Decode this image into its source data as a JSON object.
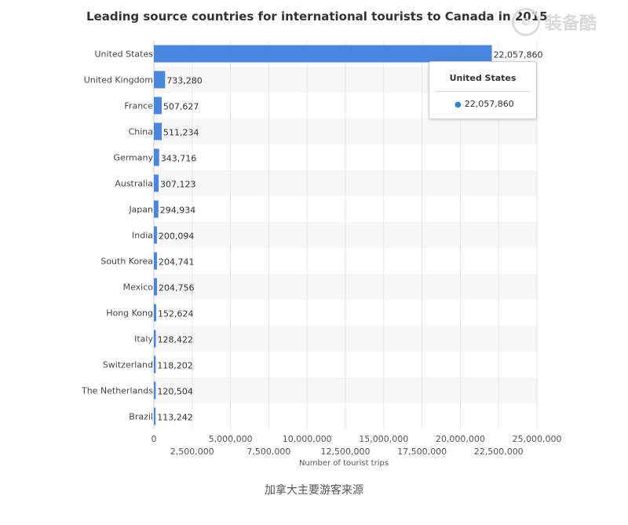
{
  "chart_data": {
    "type": "bar",
    "orientation": "horizontal",
    "title": "Leading source countries for international tourists to Canada in 2015",
    "xlabel": "Number of tourist trips",
    "xlim": [
      0,
      25000000
    ],
    "ticks_top": [
      "0",
      "5,000,000",
      "10,000,000",
      "15,000,000",
      "20,000,000",
      "25,000,000"
    ],
    "ticks_bottom": [
      "2,500,000",
      "7,500,000",
      "12,500,000",
      "17,500,000",
      "22,500,000"
    ],
    "categories": [
      "United States",
      "United Kingdom",
      "France",
      "China",
      "Germany",
      "Australia",
      "Japan",
      "India",
      "South Korea",
      "Mexico",
      "Hong Kong",
      "Italy",
      "Switzerland",
      "The Netherlands",
      "Brazil"
    ],
    "values": [
      22057860,
      733280,
      507627,
      511234,
      343716,
      307123,
      294934,
      200094,
      204741,
      204756,
      152624,
      128422,
      118202,
      120504,
      113242
    ],
    "value_labels": [
      "22,057,860",
      "733,280",
      "507,627",
      "511,234",
      "343,716",
      "307,123",
      "294,934",
      "200,094",
      "204,741",
      "204,756",
      "152,624",
      "128,422",
      "118,202",
      "120,504",
      "113,242"
    ],
    "bar_color": "#4a86e0",
    "grid": true
  },
  "tooltip": {
    "title": "United States",
    "value": "22,057,860"
  },
  "watermark": {
    "text": "装备酷"
  },
  "caption": "加拿大主要游客来源"
}
